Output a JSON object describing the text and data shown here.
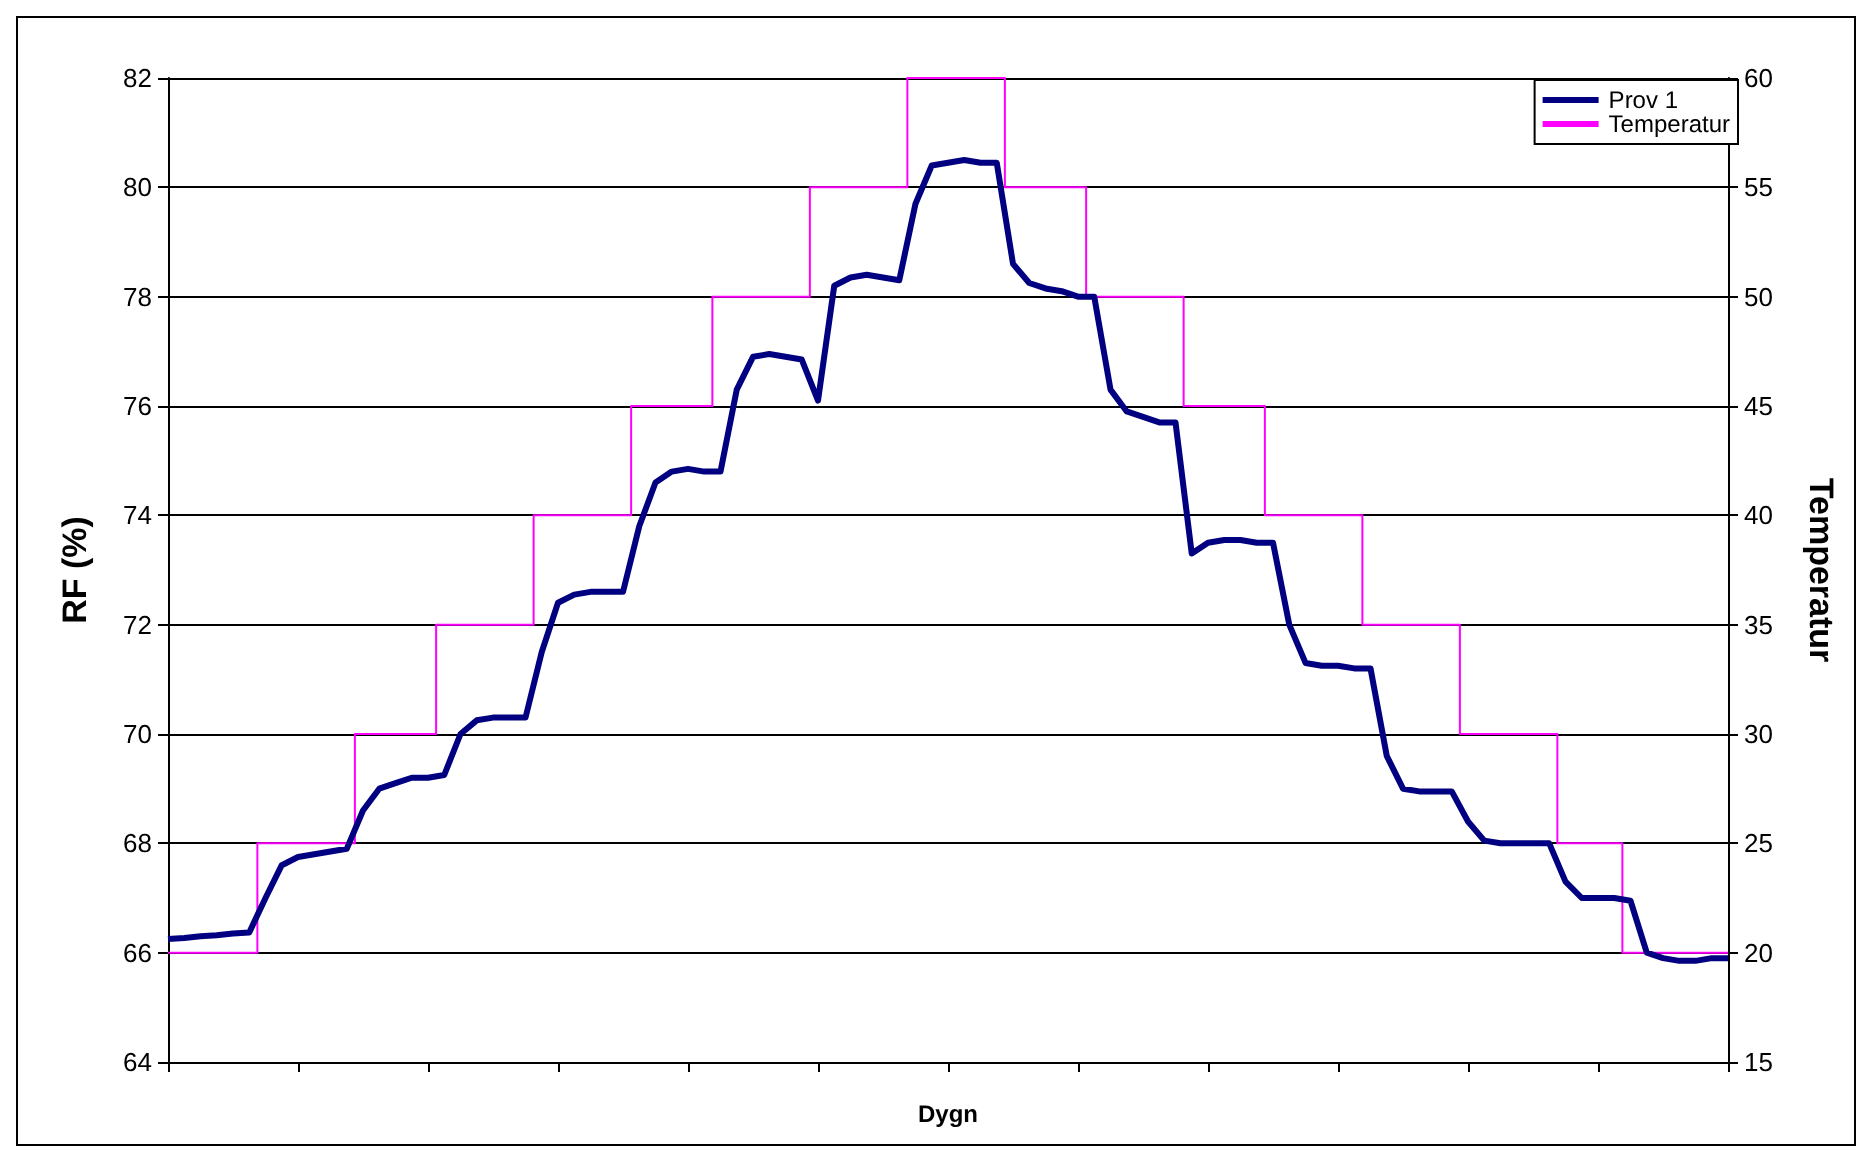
{
  "chart_data": {
    "type": "line",
    "xlabel": "Dygn",
    "ylabel": "RF (%)",
    "y2label": "Temperatur",
    "categories": [
      null,
      null,
      null,
      null,
      null,
      null,
      null,
      null,
      null,
      null,
      null,
      null,
      null,
      null,
      null,
      null,
      null,
      null,
      null,
      null,
      null,
      null,
      null,
      null,
      null,
      null,
      null,
      null,
      null,
      null,
      null,
      null,
      null,
      null,
      null,
      null,
      null,
      null,
      null,
      null,
      null,
      null,
      null,
      null,
      null,
      null,
      null,
      null,
      null,
      null,
      null,
      null,
      null,
      null,
      null,
      null,
      null,
      null,
      null,
      null,
      null,
      null,
      null,
      null,
      null,
      null,
      null,
      null,
      null,
      null,
      null,
      null,
      null,
      null,
      null,
      null,
      null,
      null,
      null,
      null,
      null,
      null,
      null,
      null,
      null,
      null,
      null,
      null,
      null,
      null,
      null,
      null,
      null,
      null,
      null,
      null,
      null
    ],
    "series": [
      {
        "name": "Prov 1",
        "color": "#000080",
        "values": [
          66.25,
          66.27,
          66.3,
          66.32,
          66.35,
          66.37,
          67.0,
          67.6,
          67.75,
          67.8,
          67.85,
          67.9,
          68.6,
          69.0,
          69.1,
          69.2,
          69.2,
          69.25,
          70.0,
          70.25,
          70.3,
          70.3,
          70.3,
          71.5,
          72.4,
          72.55,
          72.6,
          72.6,
          72.6,
          73.8,
          74.6,
          74.8,
          74.85,
          74.8,
          74.8,
          76.3,
          76.9,
          76.95,
          76.9,
          76.85,
          76.1,
          78.2,
          78.35,
          78.4,
          78.35,
          78.3,
          79.7,
          80.4,
          80.45,
          80.5,
          80.45,
          80.45,
          78.6,
          78.25,
          78.15,
          78.1,
          78.0,
          78.0,
          76.3,
          75.9,
          75.8,
          75.7,
          75.7,
          73.3,
          73.5,
          73.55,
          73.55,
          73.5,
          73.5,
          72.0,
          71.3,
          71.25,
          71.25,
          71.2,
          71.2,
          69.6,
          69.0,
          68.95,
          68.95,
          68.95,
          68.4,
          68.05,
          68.0,
          68.0,
          68.0,
          68.0,
          67.3,
          67.0,
          67.0,
          67.0,
          66.95,
          66.0,
          65.9,
          65.85,
          65.85,
          65.9,
          65.9
        ]
      },
      {
        "name": "Temperatur",
        "type": "step",
        "axis": "y2",
        "color": "#ff00ff",
        "values": [
          20,
          20,
          20,
          20,
          20,
          20,
          25,
          25,
          25,
          25,
          25,
          25,
          30,
          30,
          30,
          30,
          30,
          35,
          35,
          35,
          35,
          35,
          35,
          40,
          40,
          40,
          40,
          40,
          40,
          45,
          45,
          45,
          45,
          45,
          50,
          50,
          50,
          50,
          50,
          50,
          55,
          55,
          55,
          55,
          55,
          55,
          60,
          60,
          60,
          60,
          60,
          60,
          55,
          55,
          55,
          55,
          55,
          50,
          50,
          50,
          50,
          50,
          50,
          45,
          45,
          45,
          45,
          45,
          40,
          40,
          40,
          40,
          40,
          40,
          35,
          35,
          35,
          35,
          35,
          35,
          30,
          30,
          30,
          30,
          30,
          30,
          25,
          25,
          25,
          25,
          20,
          20,
          20,
          20,
          20,
          20,
          20
        ]
      }
    ],
    "ylim": [
      64,
      82
    ],
    "yticks": [
      64,
      66,
      68,
      70,
      72,
      74,
      76,
      78,
      80,
      82
    ],
    "y2lim": [
      15,
      60
    ],
    "y2ticks": [
      15,
      20,
      25,
      30,
      35,
      40,
      45,
      50,
      55,
      60
    ],
    "grid": "y",
    "legend": "top right",
    "marker": "none"
  }
}
